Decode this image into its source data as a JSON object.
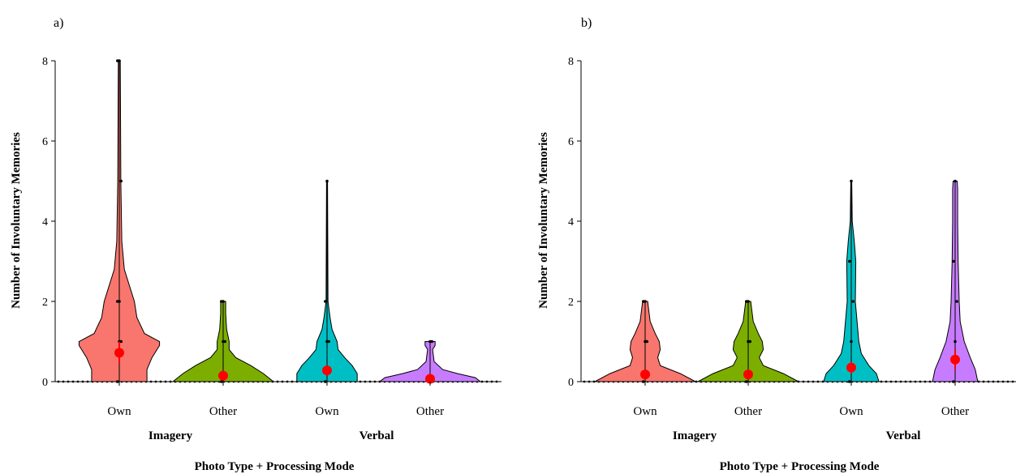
{
  "chart_data": [
    {
      "panel": "a)",
      "type": "violin",
      "xlabel": "Photo Type + Processing Mode",
      "ylabel": "Number of Involuntary Memories",
      "ylim": [
        0,
        8
      ],
      "yticks": [
        0,
        2,
        4,
        6,
        8
      ],
      "groups": [
        "Imagery",
        "Verbal"
      ],
      "categories": [
        "Own",
        "Other",
        "Own",
        "Other"
      ],
      "colors": [
        "#f8766d",
        "#7cae00",
        "#00bfc4",
        "#c77cff"
      ],
      "series": [
        {
          "category": "Own",
          "group": "Imagery",
          "mean": 0.72,
          "ci": [
            0.45,
            1.0
          ],
          "density": [
            [
              0,
              0.55
            ],
            [
              0.3,
              0.55
            ],
            [
              0.6,
              0.65
            ],
            [
              0.9,
              0.8
            ],
            [
              1.0,
              0.8
            ],
            [
              1.2,
              0.5
            ],
            [
              1.6,
              0.35
            ],
            [
              2.0,
              0.3
            ],
            [
              2.8,
              0.1
            ],
            [
              3.5,
              0.05
            ],
            [
              5.0,
              0.03
            ],
            [
              8.0,
              0.02
            ]
          ],
          "points": [
            0,
            1,
            1,
            2,
            2,
            5,
            8,
            8
          ]
        },
        {
          "category": "Other",
          "group": "Imagery",
          "mean": 0.15,
          "ci": [
            0.05,
            0.25
          ],
          "density": [
            [
              0,
              1.0
            ],
            [
              0.2,
              0.8
            ],
            [
              0.4,
              0.55
            ],
            [
              0.6,
              0.25
            ],
            [
              0.8,
              0.12
            ],
            [
              1.0,
              0.12
            ],
            [
              1.3,
              0.07
            ],
            [
              1.7,
              0.05
            ],
            [
              2.0,
              0.05
            ]
          ],
          "points": [
            0,
            1,
            1,
            2,
            2
          ]
        },
        {
          "category": "Own",
          "group": "Verbal",
          "mean": 0.28,
          "ci": [
            0.15,
            0.4
          ],
          "density": [
            [
              0,
              0.6
            ],
            [
              0.2,
              0.6
            ],
            [
              0.4,
              0.5
            ],
            [
              0.6,
              0.35
            ],
            [
              0.8,
              0.22
            ],
            [
              1.0,
              0.2
            ],
            [
              1.3,
              0.1
            ],
            [
              1.6,
              0.06
            ],
            [
              2.0,
              0.02
            ],
            [
              5.0,
              0.01
            ]
          ],
          "points": [
            0,
            1,
            1,
            2,
            5
          ]
        },
        {
          "category": "Other",
          "group": "Verbal",
          "mean": 0.07,
          "ci": [
            0.0,
            0.14
          ],
          "density": [
            [
              0,
              1.0
            ],
            [
              0.1,
              0.9
            ],
            [
              0.2,
              0.55
            ],
            [
              0.3,
              0.25
            ],
            [
              0.5,
              0.08
            ],
            [
              0.8,
              0.05
            ],
            [
              0.9,
              0.1
            ],
            [
              1.0,
              0.1
            ]
          ],
          "points": [
            0,
            1,
            1
          ]
        }
      ]
    },
    {
      "panel": "b)",
      "type": "violin",
      "xlabel": "Photo Type + Processing Mode",
      "ylabel": "Number of Involuntary Memories",
      "ylim": [
        0,
        8
      ],
      "yticks": [
        0,
        2,
        4,
        6,
        8
      ],
      "groups": [
        "Imagery",
        "Verbal"
      ],
      "categories": [
        "Own",
        "Other",
        "Own",
        "Other"
      ],
      "colors": [
        "#f8766d",
        "#7cae00",
        "#00bfc4",
        "#c77cff"
      ],
      "series": [
        {
          "category": "Own",
          "group": "Imagery",
          "mean": 0.18,
          "ci": [
            0.08,
            0.28
          ],
          "density": [
            [
              0,
              1.0
            ],
            [
              0.2,
              0.7
            ],
            [
              0.4,
              0.3
            ],
            [
              0.6,
              0.25
            ],
            [
              0.8,
              0.3
            ],
            [
              1.0,
              0.28
            ],
            [
              1.2,
              0.2
            ],
            [
              1.5,
              0.1
            ],
            [
              2.0,
              0.05
            ]
          ],
          "points": [
            0,
            1,
            1,
            2,
            2
          ]
        },
        {
          "category": "Other",
          "group": "Imagery",
          "mean": 0.18,
          "ci": [
            0.08,
            0.28
          ],
          "density": [
            [
              0,
              1.0
            ],
            [
              0.2,
              0.7
            ],
            [
              0.4,
              0.3
            ],
            [
              0.6,
              0.22
            ],
            [
              0.8,
              0.3
            ],
            [
              1.0,
              0.28
            ],
            [
              1.2,
              0.2
            ],
            [
              1.5,
              0.1
            ],
            [
              2.0,
              0.05
            ]
          ],
          "points": [
            0,
            1,
            1,
            2,
            2
          ]
        },
        {
          "category": "Own",
          "group": "Verbal",
          "mean": 0.35,
          "ci": [
            0.2,
            0.5
          ],
          "density": [
            [
              0,
              0.55
            ],
            [
              0.2,
              0.5
            ],
            [
              0.4,
              0.35
            ],
            [
              0.7,
              0.2
            ],
            [
              1.0,
              0.15
            ],
            [
              2.0,
              0.08
            ],
            [
              3.0,
              0.09
            ],
            [
              3.5,
              0.06
            ],
            [
              4.0,
              0.02
            ],
            [
              5.0,
              0.01
            ]
          ],
          "points": [
            0,
            1,
            2,
            3,
            5
          ]
        },
        {
          "category": "Other",
          "group": "Verbal",
          "mean": 0.55,
          "ci": [
            0.3,
            0.8
          ],
          "density": [
            [
              0,
              0.45
            ],
            [
              0.3,
              0.4
            ],
            [
              0.6,
              0.3
            ],
            [
              1.0,
              0.18
            ],
            [
              1.5,
              0.1
            ],
            [
              2.0,
              0.08
            ],
            [
              3.0,
              0.06
            ],
            [
              4.0,
              0.05
            ],
            [
              4.8,
              0.05
            ],
            [
              5.0,
              0.04
            ]
          ],
          "points": [
            0,
            1,
            2,
            3,
            5
          ]
        }
      ]
    }
  ]
}
